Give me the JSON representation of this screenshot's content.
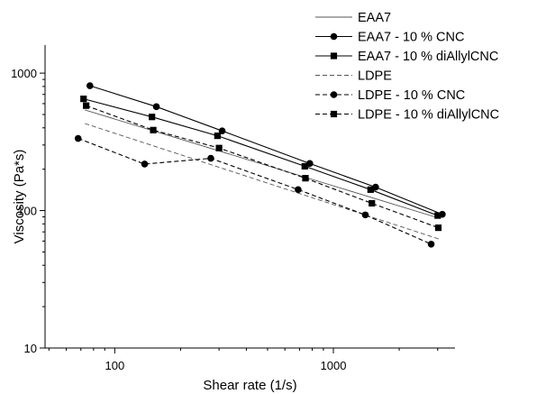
{
  "chart_data": {
    "type": "line",
    "xlabel": "Shear rate (1/s)",
    "ylabel": "Viscosity (Pa*s)",
    "xscale": "log",
    "yscale": "log",
    "xlim": [
      48,
      3600
    ],
    "ylim": [
      10,
      1600
    ],
    "x_ticks": [
      100,
      1000
    ],
    "x_tick_labels": [
      "100",
      "1000"
    ],
    "y_ticks": [
      10,
      100,
      1000
    ],
    "y_tick_labels": [
      "10",
      "100",
      "1000"
    ],
    "grid": false,
    "legend_position": "top-right",
    "series": [
      {
        "name": "EAA7",
        "line_style": "solid",
        "marker": "none",
        "x": [
          73,
          3050
        ],
        "y": [
          540,
          88
        ]
      },
      {
        "name": "EAA7 - 10 % CNC",
        "line_style": "solid",
        "marker": "circle",
        "x": [
          77,
          155,
          310,
          780,
          1560,
          3150
        ],
        "y": [
          810,
          570,
          380,
          220,
          148,
          94
        ]
      },
      {
        "name": "EAA7 - 10 % diAllylCNC",
        "line_style": "solid",
        "marker": "square",
        "x": [
          72,
          148,
          295,
          740,
          1480,
          3000
        ],
        "y": [
          650,
          480,
          350,
          210,
          142,
          92
        ]
      },
      {
        "name": "LDPE",
        "line_style": "dashed",
        "marker": "none",
        "x": [
          73,
          3050
        ],
        "y": [
          430,
          62
        ]
      },
      {
        "name": "LDPE - 10 % CNC",
        "line_style": "dashed",
        "marker": "circle",
        "x": [
          68,
          137,
          275,
          690,
          1400,
          2800
        ],
        "y": [
          335,
          218,
          240,
          142,
          93,
          57
        ]
      },
      {
        "name": "LDPE - 10 % diAllylCNC",
        "line_style": "dashed",
        "marker": "square",
        "x": [
          74,
          150,
          300,
          745,
          1500,
          3020
        ],
        "y": [
          580,
          385,
          285,
          172,
          113,
          75
        ]
      }
    ]
  }
}
